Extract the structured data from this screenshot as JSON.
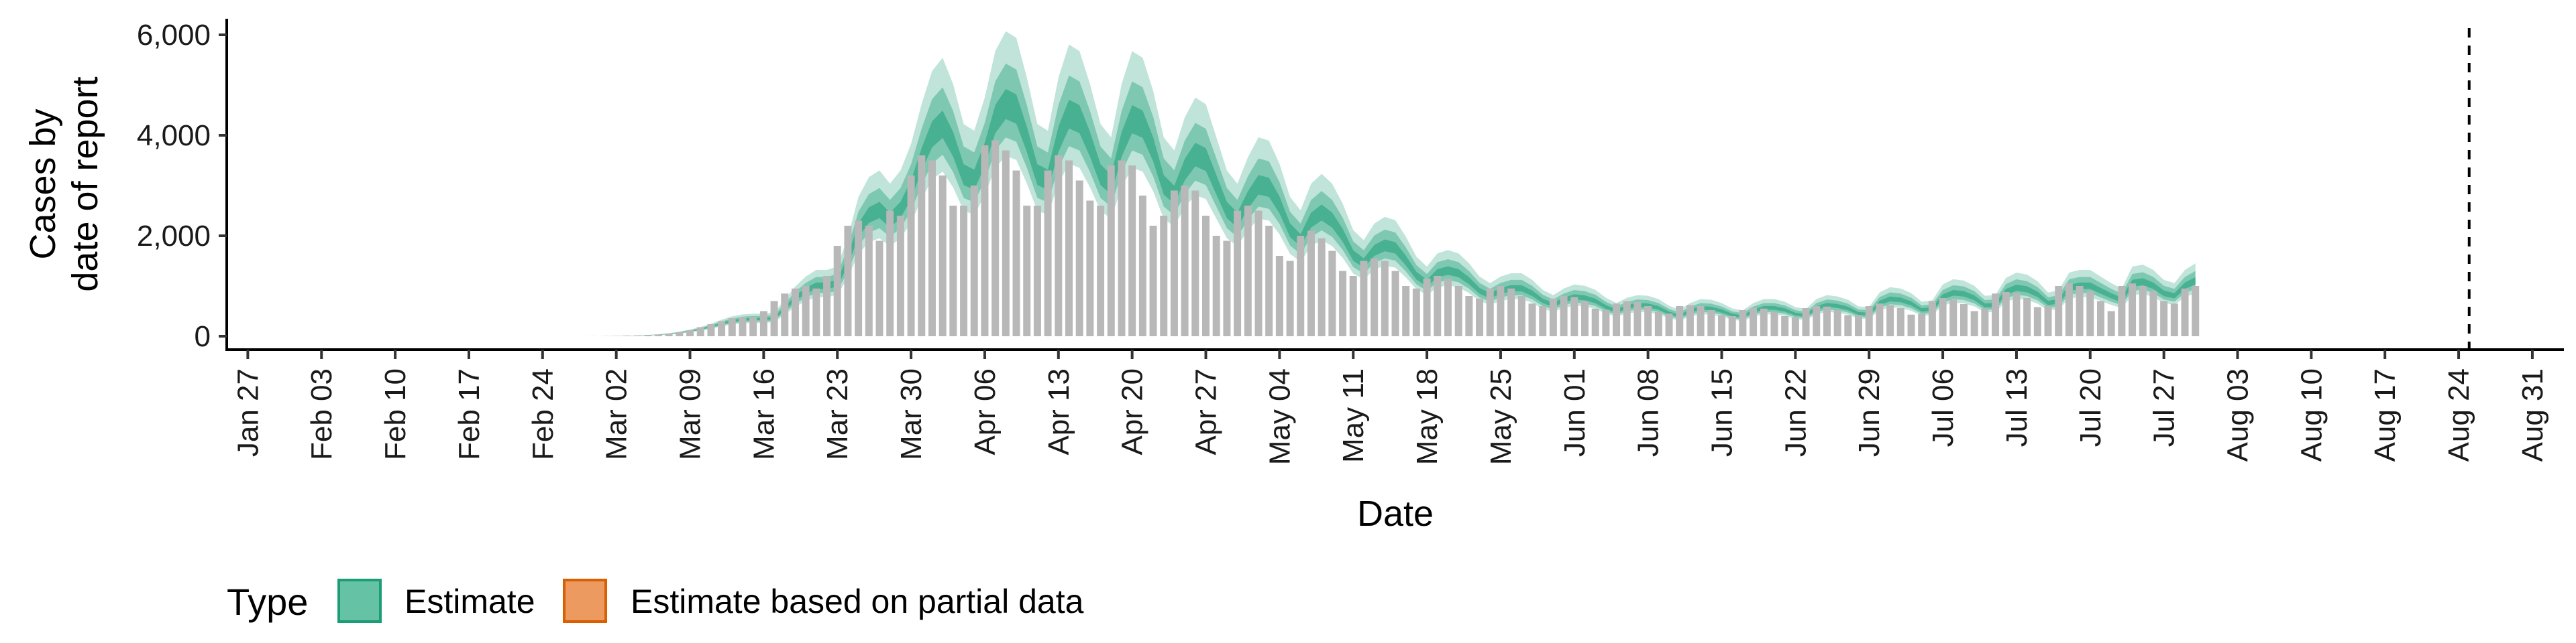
{
  "chart_data": {
    "type": "bar",
    "xlabel": "Date",
    "ylabel_lines": [
      "Cases by",
      "date of report"
    ],
    "ylim": [
      0,
      6000
    ],
    "yticks": [
      0,
      2000,
      4000,
      6000
    ],
    "ytick_labels": [
      "0",
      "2,000",
      "4,000",
      "6,000"
    ],
    "xlim": [
      "2020-01-25",
      "2020-09-03"
    ],
    "xticks": [
      "2020-01-27",
      "2020-02-03",
      "2020-02-10",
      "2020-02-17",
      "2020-02-24",
      "2020-03-02",
      "2020-03-09",
      "2020-03-16",
      "2020-03-23",
      "2020-03-30",
      "2020-04-06",
      "2020-04-13",
      "2020-04-20",
      "2020-04-27",
      "2020-05-04",
      "2020-05-11",
      "2020-05-18",
      "2020-05-25",
      "2020-06-01",
      "2020-06-08",
      "2020-06-15",
      "2020-06-22",
      "2020-06-29",
      "2020-07-06",
      "2020-07-13",
      "2020-07-20",
      "2020-07-27",
      "2020-08-03",
      "2020-08-10",
      "2020-08-17",
      "2020-08-24",
      "2020-08-31"
    ],
    "xtick_labels": [
      "Jan 27",
      "Feb 03",
      "Feb 10",
      "Feb 17",
      "Feb 24",
      "Mar 02",
      "Mar 09",
      "Mar 16",
      "Mar 23",
      "Mar 30",
      "Apr 06",
      "Apr 13",
      "Apr 20",
      "Apr 27",
      "May 04",
      "May 11",
      "May 18",
      "May 25",
      "Jun 01",
      "Jun 08",
      "Jun 15",
      "Jun 22",
      "Jun 29",
      "Jul 06",
      "Jul 13",
      "Jul 20",
      "Jul 27",
      "Aug 03",
      "Aug 10",
      "Aug 17",
      "Aug 24",
      "Aug 31"
    ],
    "vline_date": "2020-08-25",
    "grid": false,
    "legend_position": "bottom-left",
    "legend": {
      "title": "Type",
      "entries": [
        {
          "label": "Estimate",
          "fill": "#66c2a5",
          "stroke": "#1b9e77"
        },
        {
          "label": "Estimate based on partial data",
          "fill": "#ec9a5f",
          "stroke": "#d95f02"
        }
      ]
    },
    "colors": {
      "bars": "#b8b8b8",
      "estimate": "#1b9e77",
      "partial": "#d95f02",
      "vline": "#000000"
    },
    "reported_cases": {
      "start_date": "2020-02-01",
      "values": [
        0,
        0,
        0,
        0,
        0,
        0,
        0,
        0,
        0,
        0,
        0,
        0,
        0,
        0,
        0,
        0,
        0,
        0,
        0,
        0,
        0,
        0,
        0,
        0,
        0,
        0,
        0,
        0,
        0,
        3,
        5,
        10,
        15,
        25,
        35,
        55,
        80,
        120,
        180,
        240,
        300,
        360,
        380,
        380,
        500,
        700,
        850,
        950,
        1000,
        950,
        1200,
        1800,
        2200,
        2300,
        2200,
        1900,
        2500,
        2400,
        3200,
        3600,
        3500,
        3200,
        2600,
        2600,
        3000,
        3800,
        3900,
        3700,
        3300,
        2600,
        2600,
        3300,
        3600,
        3500,
        3100,
        2700,
        2600,
        3400,
        3500,
        3400,
        2800,
        2200,
        2400,
        2900,
        3000,
        2900,
        2400,
        2000,
        1900,
        2500,
        2600,
        2500,
        2200,
        1600,
        1500,
        2000,
        2100,
        1950,
        1700,
        1300,
        1200,
        1500,
        1550,
        1500,
        1300,
        1000,
        950,
        1150,
        1200,
        1150,
        1000,
        800,
        750,
        950,
        1000,
        950,
        800,
        650,
        600,
        750,
        800,
        780,
        700,
        550,
        520,
        650,
        700,
        680,
        600,
        480,
        450,
        600,
        620,
        600,
        520,
        420,
        400,
        520,
        560,
        550,
        480,
        400,
        380,
        560,
        600,
        590,
        520,
        420,
        420,
        600,
        650,
        620,
        560,
        430,
        450,
        700,
        760,
        730,
        640,
        500,
        550,
        850,
        880,
        860,
        760,
        580,
        600,
        1000,
        1050,
        1000,
        900,
        700,
        500,
        1000,
        1050,
        1000,
        900,
        700,
        650,
        950,
        1000
      ]
    },
    "estimate_median": {
      "start_date": "2020-02-04",
      "values": [
        0,
        0,
        0,
        0,
        0,
        0,
        0,
        0,
        0,
        0,
        0,
        0,
        0,
        0,
        0,
        0,
        0,
        0,
        0,
        0,
        0,
        0,
        0,
        0,
        0,
        1,
        2,
        4,
        8,
        12,
        20,
        30,
        45,
        70,
        100,
        140,
        190,
        250,
        300,
        330,
        340,
        340,
        360,
        550,
        750,
        900,
        1000,
        1000,
        1050,
        1500,
        2100,
        2400,
        2500,
        2300,
        2500,
        2900,
        3500,
        4000,
        4200,
        3800,
        3200,
        3100,
        3600,
        4300,
        4600,
        4500,
        3900,
        3200,
        3100,
        3900,
        4400,
        4300,
        3800,
        3200,
        3000,
        3800,
        4300,
        4200,
        3700,
        3000,
        2800,
        3300,
        3600,
        3500,
        3000,
        2500,
        2300,
        2700,
        3000,
        2950,
        2600,
        2100,
        1900,
        2300,
        2450,
        2300,
        2000,
        1600,
        1450,
        1700,
        1800,
        1750,
        1500,
        1200,
        1050,
        1250,
        1300,
        1250,
        1100,
        900,
        800,
        900,
        950,
        950,
        850,
        700,
        620,
        720,
        780,
        760,
        700,
        580,
        500,
        580,
        620,
        610,
        560,
        460,
        400,
        500,
        560,
        550,
        500,
        420,
        390,
        500,
        560,
        560,
        520,
        440,
        410,
        560,
        620,
        600,
        550,
        450,
        440,
        660,
        740,
        720,
        650,
        520,
        540,
        780,
        860,
        840,
        760,
        610,
        620,
        880,
        960,
        930,
        830,
        660,
        690,
        960,
        1000,
        1000,
        900,
        800,
        720,
        1050,
        1080,
        1000,
        850,
        800,
        1000,
        1100
      ]
    },
    "partial_start_date": "2020-08-15"
  }
}
